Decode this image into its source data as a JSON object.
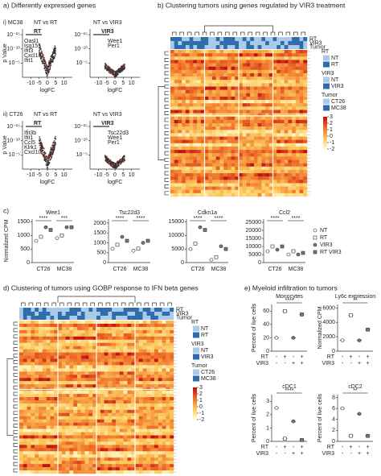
{
  "panel_a": {
    "title": "a)  Differently expressed genes",
    "ylabel": "p Value",
    "xlabel": "logFC",
    "xlim": [
      -15,
      15
    ],
    "xticks": [
      -10,
      -5,
      0,
      5,
      10
    ],
    "ylim": [
      0,
      17
    ],
    "yticks": [
      {
        "value": 5,
        "label": "10⁻⁵"
      },
      {
        "value": 10,
        "label": "10⁻¹⁰"
      },
      {
        "value": 15,
        "label": "10⁻¹⁵"
      }
    ],
    "plots": [
      {
        "label": "i) MC38",
        "subtitle": "NT vs RT",
        "arrow_label": "RT",
        "genes": [
          "Oasl1",
          "Isg15",
          "Ifit3",
          "Cxcl10",
          "Ifit1"
        ]
      },
      {
        "subtitle": "NT vs VIR3",
        "arrow_label": "VIR3",
        "genes": [
          "Wee1",
          "Per1"
        ]
      },
      {
        "label": "ii) CT26",
        "subtitle": "NT vs RT",
        "arrow_label": "RT",
        "genes": [
          "Ifit3b",
          "Ifit1",
          "Ccl5",
          "Klrk1",
          "Cxcl10"
        ]
      },
      {
        "subtitle": "NT vs VIR3",
        "arrow_label": "VIR3",
        "genes": [
          "Tsc22d3",
          "Wee1",
          "Per1"
        ]
      }
    ]
  },
  "panel_b": {
    "title": "b) Clustering tumors using genes regulated by VIR3 treatment",
    "rows": [
      "RT",
      "VIR3",
      "Tumor"
    ],
    "legend": [
      {
        "title": "RT",
        "items": [
          {
            "name": "NT",
            "color": "#a9cbe9"
          },
          {
            "name": "RT",
            "color": "#2f6cab"
          }
        ]
      },
      {
        "title": "VIR3",
        "items": [
          {
            "name": "NT",
            "color": "#a9cbe9"
          },
          {
            "name": "VIR3",
            "color": "#2f6cab"
          }
        ]
      },
      {
        "title": "Tumor",
        "items": [
          {
            "name": "CT26",
            "color": "#a9cbe9"
          },
          {
            "name": "MC38",
            "color": "#2f6cab"
          }
        ]
      }
    ],
    "colorbar": {
      "lim": [
        -2,
        3
      ],
      "ticks": [
        -2,
        -1,
        0,
        1,
        2,
        3
      ]
    }
  },
  "panel_c": {
    "label": "c)",
    "ylabel": "Normalized CPM",
    "groups": [
      "NT",
      "RT",
      "VIR3",
      "RT VIR3"
    ],
    "tumors": [
      "CT26",
      "MC38"
    ],
    "plots": [
      {
        "title": "Wee1",
        "ylim": [
          0,
          1600
        ],
        "yticks": [
          0,
          500,
          1000,
          1500
        ],
        "values": [
          [
            800,
            950,
            1300,
            1200
          ],
          [
            900,
            1000,
            1300,
            1300
          ]
        ],
        "stars": [
          "****",
          "***"
        ]
      },
      {
        "title": "Tsc22d3",
        "ylim": [
          0,
          2200
        ],
        "yticks": [
          0,
          500,
          1000,
          1500,
          2000
        ],
        "values": [
          [
            700,
            900,
            1300,
            1100
          ],
          [
            600,
            700,
            1000,
            1100
          ]
        ],
        "stars": [
          "****",
          "****"
        ]
      },
      {
        "title": "Cdkn1a",
        "ylim": [
          0,
          16000
        ],
        "yticks": [
          0,
          5000,
          10000,
          15000
        ],
        "values": [
          [
            5000,
            7000,
            13000,
            12000
          ],
          [
            1000,
            2000,
            6000,
            5000
          ]
        ],
        "stars": [
          "****",
          "****"
        ]
      },
      {
        "title": "Ccl2",
        "ylim": [
          0,
          27000
        ],
        "yticks": [
          0,
          5000,
          10000,
          15000,
          20000,
          25000
        ],
        "values": [
          [
            7000,
            10000,
            8000,
            10000
          ],
          [
            5000,
            7000,
            5000,
            6000
          ]
        ],
        "stars": [
          "****",
          "****"
        ]
      }
    ]
  },
  "panel_d": {
    "title": "d) Clustering of tumors using GOBP response to IFN beta genes",
    "rows": [
      "RT",
      "VIR3",
      "Tumor"
    ],
    "legend": [
      {
        "title": "RT",
        "items": [
          {
            "name": "NT",
            "color": "#a9cbe9"
          },
          {
            "name": "RT",
            "color": "#2f6cab"
          }
        ]
      },
      {
        "title": "VIR3",
        "items": [
          {
            "name": "NT",
            "color": "#a9cbe9"
          },
          {
            "name": "VIR3",
            "color": "#2f6cab"
          }
        ]
      },
      {
        "title": "Tumor",
        "items": [
          {
            "name": "CT26",
            "color": "#a9cbe9"
          },
          {
            "name": "MC38",
            "color": "#2f6cab"
          }
        ]
      }
    ],
    "colorbar": {
      "lim": [
        -2,
        3
      ],
      "ticks": [
        -2,
        -1,
        0,
        1,
        2,
        3
      ]
    }
  },
  "panel_e": {
    "title": "e) Myeloid infiltration to tumors",
    "row_labels": [
      "RT",
      "VIR3"
    ],
    "rt_signs": [
      "-",
      "+",
      "-",
      "+"
    ],
    "vir3_signs": [
      "-",
      "-",
      "+",
      "+"
    ],
    "plots": [
      {
        "title": "Monocytes",
        "ylabel": "Percent of live cells",
        "ylim": [
          0,
          70
        ],
        "yticks": [
          0,
          20,
          40,
          60
        ],
        "values": [
          20,
          60,
          20,
          55
        ],
        "stars": "****"
      },
      {
        "title": "Ly6c expression",
        "ylabel": "Normalized CPM",
        "ylim": [
          0,
          6500
        ],
        "yticks": [
          0,
          2000,
          4000,
          6000
        ],
        "values": [
          1500,
          5000,
          1500,
          3000
        ],
        "stars": "**"
      },
      {
        "title": "cDC1",
        "ylabel": "Percent of live cells",
        "ylim": [
          0,
          3.5
        ],
        "yticks": [
          0,
          1,
          2,
          3
        ],
        "values": [
          2.5,
          0.2,
          1.5,
          0.1
        ],
        "stars": "****"
      },
      {
        "title": "cDC2",
        "ylabel": "Percent of live cells",
        "ylim": [
          0,
          8.5
        ],
        "yticks": [
          0,
          2,
          4,
          6,
          8
        ],
        "values": [
          6,
          1,
          5,
          1
        ],
        "stars": "**"
      }
    ]
  }
}
